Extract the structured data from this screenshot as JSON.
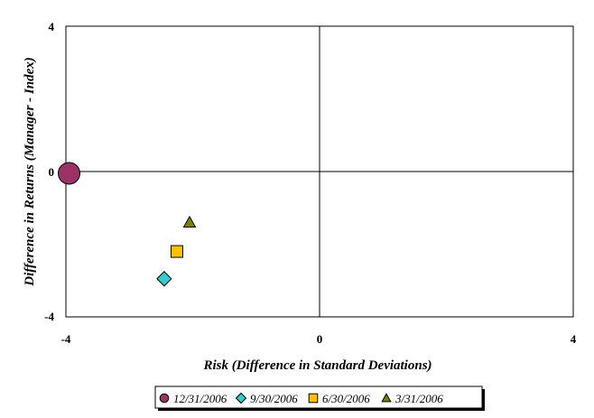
{
  "chart_data": {
    "type": "scatter",
    "title": "",
    "xlabel": "Risk (Difference in Standard Deviations)",
    "ylabel": "Difference in Returns (Manager - Index)",
    "xlim": [
      -4,
      4
    ],
    "ylim": [
      -4,
      4
    ],
    "x_ticks": [
      "-4",
      "0",
      "4"
    ],
    "y_ticks": [
      "4",
      "0",
      "-4"
    ],
    "grid": false,
    "quadrant_lines": true,
    "legend_position": "bottom",
    "series": [
      {
        "name": "12/31/2006",
        "marker": "circle",
        "color": "#993366",
        "size": "large",
        "x": -3.95,
        "y": -0.05
      },
      {
        "name": "9/30/2006",
        "marker": "diamond",
        "color": "#33CCCC",
        "size": "small",
        "x": -2.45,
        "y": -2.95
      },
      {
        "name": "6/30/2006",
        "marker": "square",
        "color": "#FFC000",
        "size": "small",
        "x": -2.25,
        "y": -2.2
      },
      {
        "name": "3/31/2006",
        "marker": "triangle",
        "color": "#808000",
        "size": "small",
        "x": -2.05,
        "y": -1.4
      }
    ]
  }
}
